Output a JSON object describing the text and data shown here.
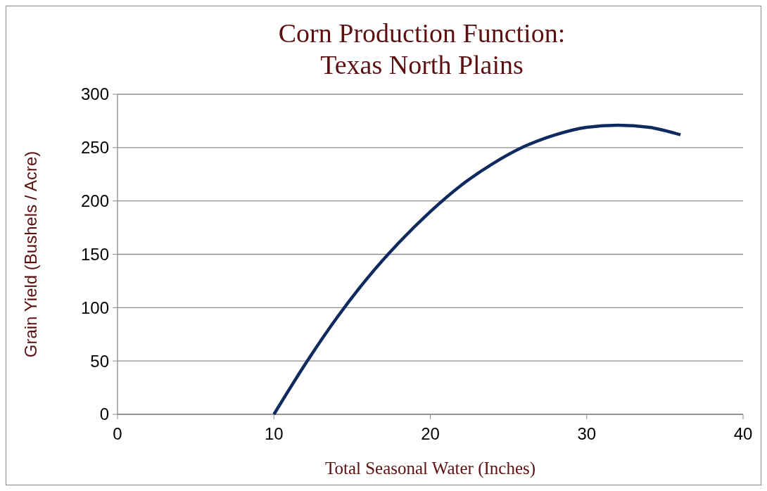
{
  "chart_data": {
    "type": "line",
    "title": "Corn Production Function:\nTexas North Plains",
    "xlabel": "Total Seasonal Water (Inches)",
    "ylabel": "Grain Yield (Bushels / Acre)",
    "x": [
      10,
      12,
      14,
      16,
      18,
      20,
      22,
      24,
      26,
      28,
      30,
      32,
      34,
      36
    ],
    "series": [
      {
        "color": "#0f2a5f",
        "values": [
          0,
          47,
          90,
          128,
          161,
          190,
          215,
          235,
          251,
          262,
          269,
          271,
          269,
          262
        ]
      }
    ],
    "xlim": [
      0,
      40
    ],
    "xticks": [
      0,
      10,
      20,
      30,
      40
    ],
    "ylim": [
      0,
      300
    ],
    "yticks": [
      0,
      50,
      100,
      150,
      200,
      250,
      300
    ],
    "grid": "y",
    "marker": "none",
    "line_style": "solid"
  }
}
